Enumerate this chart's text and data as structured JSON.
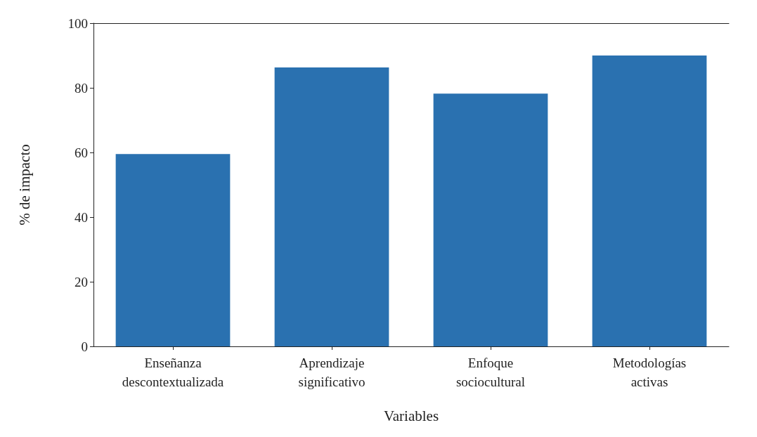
{
  "chart_data": {
    "type": "bar",
    "xlabel": "Variables",
    "ylabel": "% de impacto",
    "categories": [
      "Enseñanza\ndescontextualizada",
      "Aprendizaje\nsignificativo",
      "Enfoque\nsociocultural",
      "Metodologías\nactivas"
    ],
    "values": [
      59.5,
      86.3,
      78.2,
      90
    ],
    "color": "#2a71b0",
    "ylim": [
      0,
      100
    ],
    "yticks": [
      0,
      20,
      40,
      60,
      80,
      100
    ],
    "grid": false
  }
}
